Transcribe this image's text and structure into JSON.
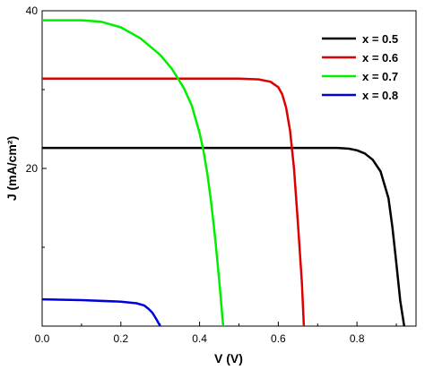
{
  "chart_data": {
    "type": "line",
    "xlabel": "V (V)",
    "ylabel": "J (mA/cm²)",
    "xlim": [
      0,
      0.95
    ],
    "ylim": [
      0,
      40
    ],
    "x_ticks": [
      "0.0",
      "0.2",
      "0.4",
      "0.6",
      "0.8"
    ],
    "x_tick_values": [
      0,
      0.2,
      0.4,
      0.6,
      0.8
    ],
    "y_ticks": [
      "20",
      "40"
    ],
    "y_tick_values": [
      20,
      40
    ],
    "legend_position": "top-right",
    "series": [
      {
        "name": "x = 0.5",
        "color": "#000000",
        "x": [
          0,
          0.2,
          0.4,
          0.6,
          0.7,
          0.75,
          0.78,
          0.8,
          0.82,
          0.84,
          0.86,
          0.88,
          0.89,
          0.9,
          0.91,
          0.92
        ],
        "y": [
          22.6,
          22.6,
          22.6,
          22.6,
          22.6,
          22.6,
          22.5,
          22.3,
          21.9,
          21.1,
          19.6,
          16.2,
          12.5,
          7.9,
          3.2,
          0
        ]
      },
      {
        "name": "x = 0.6",
        "color": "#dd0000",
        "x": [
          0,
          0.2,
          0.4,
          0.5,
          0.55,
          0.58,
          0.6,
          0.61,
          0.62,
          0.63,
          0.64,
          0.65,
          0.66,
          0.665
        ],
        "y": [
          31.4,
          31.4,
          31.4,
          31.4,
          31.3,
          31.0,
          30.3,
          29.4,
          27.7,
          24.8,
          20.0,
          13.0,
          5.5,
          0
        ]
      },
      {
        "name": "x = 0.7",
        "color": "#00ee00",
        "x": [
          0,
          0.1,
          0.15,
          0.2,
          0.25,
          0.3,
          0.33,
          0.36,
          0.38,
          0.4,
          0.41,
          0.42,
          0.43,
          0.44,
          0.45,
          0.46
        ],
        "y": [
          38.8,
          38.8,
          38.6,
          37.9,
          36.5,
          34.4,
          32.6,
          30.2,
          28.0,
          24.5,
          22.2,
          19.2,
          15.5,
          11.0,
          5.8,
          0
        ]
      },
      {
        "name": "x = 0.8",
        "color": "#0000dd",
        "x": [
          0,
          0.1,
          0.2,
          0.24,
          0.26,
          0.27,
          0.28,
          0.29,
          0.3
        ],
        "y": [
          3.4,
          3.3,
          3.1,
          2.9,
          2.6,
          2.2,
          1.7,
          0.9,
          0
        ]
      }
    ]
  }
}
